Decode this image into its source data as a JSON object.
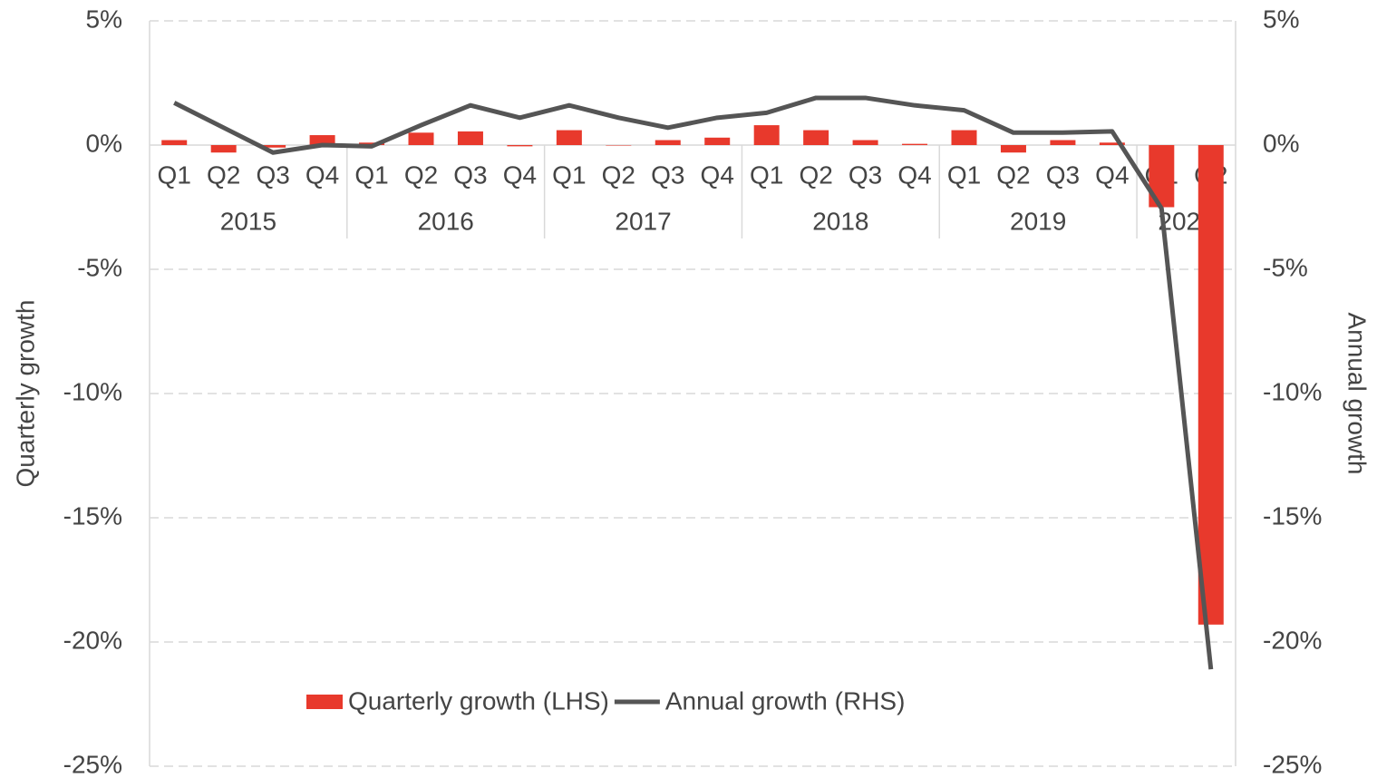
{
  "chart_data": {
    "type": "bar_line",
    "y_label": "Quarterly growth",
    "y2_label": "Annual growth",
    "category_groups": [
      {
        "label": "2015",
        "categories": [
          "Q1",
          "Q2",
          "Q3",
          "Q4"
        ]
      },
      {
        "label": "2016",
        "categories": [
          "Q1",
          "Q2",
          "Q3",
          "Q4"
        ]
      },
      {
        "label": "2017",
        "categories": [
          "Q1",
          "Q2",
          "Q3",
          "Q4"
        ]
      },
      {
        "label": "2018",
        "categories": [
          "Q1",
          "Q2",
          "Q3",
          "Q4"
        ]
      },
      {
        "label": "2019",
        "categories": [
          "Q1",
          "Q2",
          "Q3",
          "Q4"
        ]
      },
      {
        "label": "2020",
        "categories": [
          "Q1",
          "Q2"
        ]
      }
    ],
    "series": [
      {
        "name": "Quarterly growth (LHS)",
        "type": "bar",
        "color": "#e8392c",
        "values": [
          0.2,
          -0.3,
          -0.1,
          0.4,
          0.1,
          0.5,
          0.55,
          -0.05,
          0.6,
          0,
          0.2,
          0.3,
          0.8,
          0.6,
          0.2,
          0.05,
          0.6,
          -0.3,
          0.2,
          0.1,
          -2.5,
          -19.3
        ]
      },
      {
        "name": "Annual growth (RHS)",
        "type": "line",
        "color": "#555555",
        "axis": "y2",
        "values": [
          1.7,
          0.7,
          -0.3,
          0.0,
          -0.05,
          0.8,
          1.6,
          1.1,
          1.6,
          1.1,
          0.7,
          1.1,
          1.3,
          1.9,
          1.9,
          1.6,
          1.4,
          0.5,
          0.5,
          0.55,
          -2.55,
          -21.1
        ]
      }
    ],
    "ylim": [
      -25,
      5
    ],
    "yticks": [
      {
        "value": 5,
        "label": "5%"
      },
      {
        "value": 0,
        "label": "0%"
      },
      {
        "value": -5,
        "label": "-5%"
      },
      {
        "value": -10,
        "label": "-10%"
      },
      {
        "value": -15,
        "label": "-15%"
      },
      {
        "value": -20,
        "label": "-20%"
      },
      {
        "value": -25,
        "label": "-25%"
      }
    ],
    "y2lim": [
      -25,
      5
    ],
    "y2ticks": [
      {
        "value": 5,
        "label": "5%"
      },
      {
        "value": 0,
        "label": "0%"
      },
      {
        "value": -5,
        "label": "-5%"
      },
      {
        "value": -10,
        "label": "-10%"
      },
      {
        "value": -15,
        "label": "-15%"
      },
      {
        "value": -20,
        "label": "-20%"
      },
      {
        "value": -25,
        "label": "-25%"
      }
    ],
    "grid": true
  }
}
